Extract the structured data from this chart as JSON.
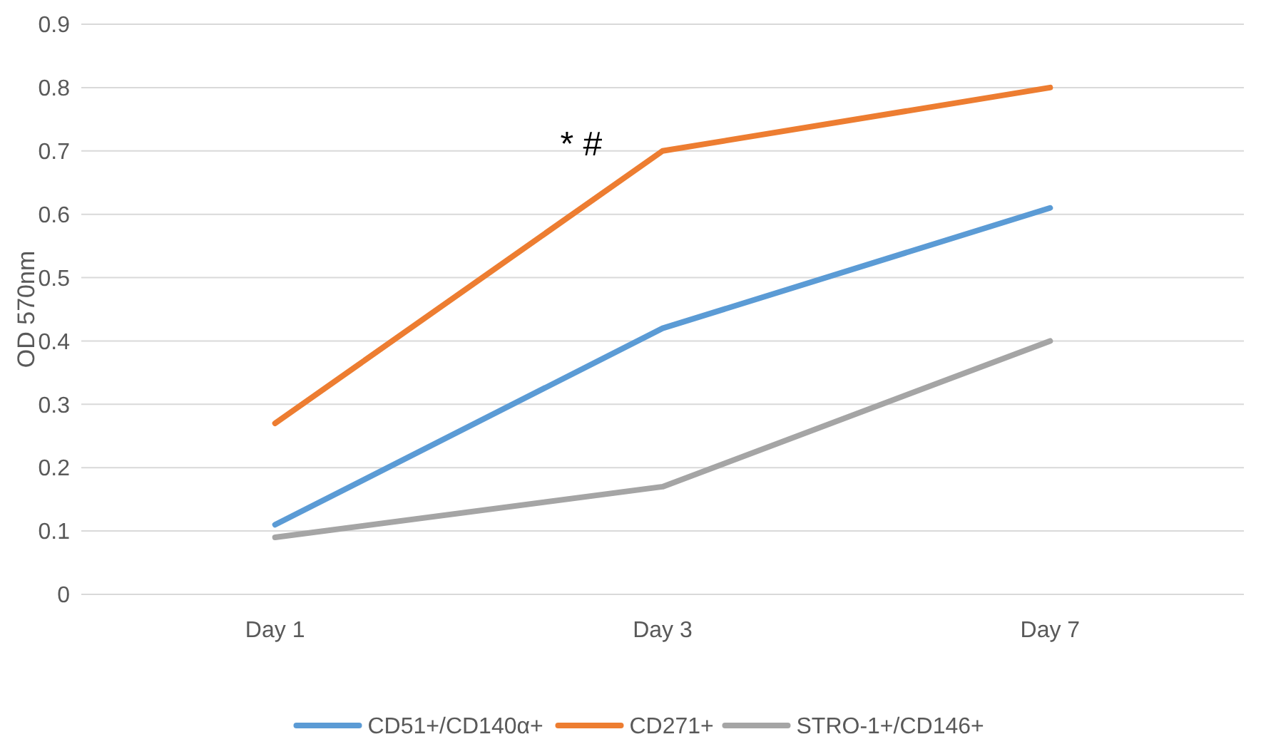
{
  "chart_data": {
    "type": "line",
    "ylabel": "OD 570nm",
    "categories": [
      "Day 1",
      "Day 3",
      "Day 7"
    ],
    "series": [
      {
        "name": "CD51+/CD140α+",
        "color": "#5b9bd5",
        "values": [
          0.11,
          0.42,
          0.61
        ]
      },
      {
        "name": "CD271+",
        "color": "#ed7d31",
        "values": [
          0.27,
          0.7,
          0.8
        ]
      },
      {
        "name": "STRO-1+/CD146+",
        "color": "#a5a5a5",
        "values": [
          0.09,
          0.17,
          0.4
        ]
      }
    ],
    "ylim": [
      0,
      0.9
    ],
    "yticks": [
      0,
      0.1,
      0.2,
      0.3,
      0.4,
      0.5,
      0.6,
      0.7,
      0.8,
      0.9
    ],
    "grid": "y",
    "legend": "bottom",
    "marker": "none",
    "line_style": "solid",
    "annotations": [
      "* #"
    ]
  }
}
